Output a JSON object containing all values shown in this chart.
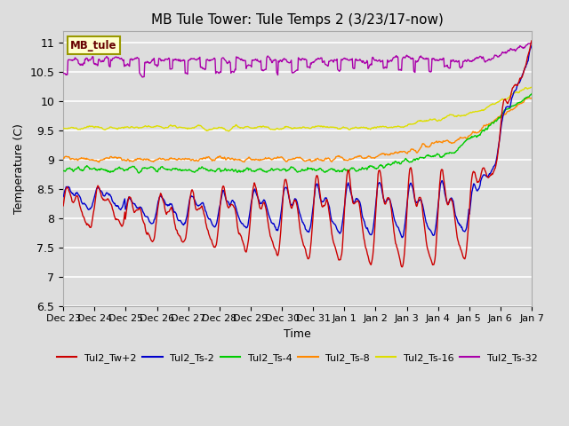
{
  "title": "MB Tule Tower: Tule Temps 2 (3/23/17-now)",
  "xlabel": "Time",
  "ylabel": "Temperature (C)",
  "ylim": [
    6.5,
    11.2
  ],
  "legend_label": "MB_tule",
  "series_colors": {
    "Tul2_Tw+2": "#cc0000",
    "Tul2_Ts-2": "#0000cc",
    "Tul2_Ts-4": "#00cc00",
    "Tul2_Ts-8": "#ff8800",
    "Tul2_Ts-16": "#dddd00",
    "Tul2_Ts-32": "#aa00aa"
  },
  "xtick_labels": [
    "Dec 23",
    "Dec 24",
    "Dec 25",
    "Dec 26",
    "Dec 27",
    "Dec 28",
    "Dec 29",
    "Dec 30",
    "Dec 31",
    "Jan 1",
    "Jan 2",
    "Jan 3",
    "Jan 4",
    "Jan 5",
    "Jan 6",
    "Jan 7"
  ],
  "yticks": [
    6.5,
    7.0,
    7.5,
    8.0,
    8.5,
    9.0,
    9.5,
    10.0,
    10.5,
    11.0
  ],
  "num_points": 800,
  "days": 15
}
